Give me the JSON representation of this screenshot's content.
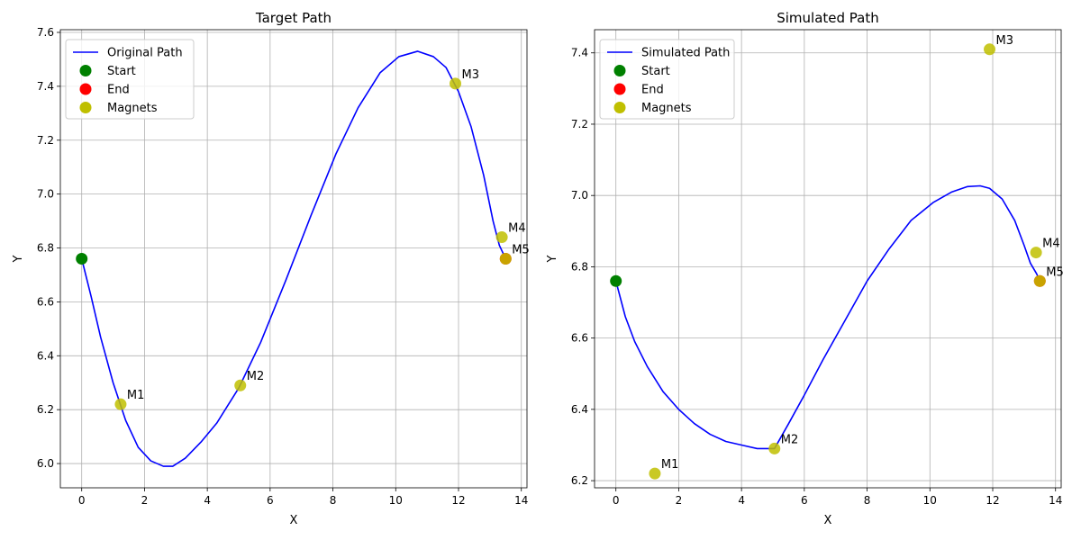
{
  "chart_data": [
    {
      "type": "line",
      "title": "Target Path",
      "xlabel": "X",
      "ylabel": "Y",
      "xlim": [
        -0.68,
        14.18
      ],
      "ylim": [
        5.91,
        7.61
      ],
      "xticks": [
        0,
        2,
        4,
        6,
        8,
        10,
        12,
        14
      ],
      "yticks": [
        6.0,
        6.2,
        6.4,
        6.6,
        6.8,
        7.0,
        7.2,
        7.4,
        7.6
      ],
      "ytick_labels": [
        "6.0",
        "6.2",
        "6.4",
        "6.6",
        "6.8",
        "7.0",
        "7.2",
        "7.4",
        "7.6"
      ],
      "grid": true,
      "legend_position": "top-left",
      "path": {
        "name": "Original Path",
        "color": "#0000ff",
        "x": [
          0,
          0.3,
          0.6,
          1.0,
          1.4,
          1.8,
          2.2,
          2.6,
          2.9,
          3.3,
          3.8,
          4.3,
          5.0,
          5.7,
          6.5,
          7.3,
          8.1,
          8.8,
          9.5,
          10.1,
          10.7,
          11.2,
          11.6,
          12.0,
          12.4,
          12.8,
          13.1,
          13.3,
          13.5
        ],
        "y": [
          6.76,
          6.62,
          6.47,
          6.3,
          6.16,
          6.06,
          6.01,
          5.99,
          5.99,
          6.02,
          6.08,
          6.15,
          6.28,
          6.45,
          6.68,
          6.92,
          7.15,
          7.32,
          7.45,
          7.51,
          7.53,
          7.51,
          7.47,
          7.38,
          7.25,
          7.07,
          6.9,
          6.81,
          6.76
        ]
      },
      "start": {
        "name": "Start",
        "x": 0,
        "y": 6.76,
        "color": "#008000"
      },
      "end": {
        "name": "End",
        "x": 13.5,
        "y": 6.76,
        "color": "#ff0000"
      },
      "magnets": {
        "name": "Magnets",
        "color": "#bfbf00",
        "points": [
          {
            "label": "M1",
            "x": 1.24,
            "y": 6.22
          },
          {
            "label": "M2",
            "x": 5.05,
            "y": 6.29
          },
          {
            "label": "M3",
            "x": 11.9,
            "y": 7.41
          },
          {
            "label": "M4",
            "x": 13.38,
            "y": 6.84
          },
          {
            "label": "M5",
            "x": 13.5,
            "y": 6.76
          }
        ]
      }
    },
    {
      "type": "line",
      "title": "Simulated Path",
      "xlabel": "X",
      "ylabel": "Y",
      "xlim": [
        -0.68,
        14.18
      ],
      "ylim": [
        6.18,
        7.465
      ],
      "xticks": [
        0,
        2,
        4,
        6,
        8,
        10,
        12,
        14
      ],
      "yticks": [
        6.2,
        6.4,
        6.6,
        6.8,
        7.0,
        7.2,
        7.4
      ],
      "ytick_labels": [
        "6.2",
        "6.4",
        "6.6",
        "6.8",
        "7.0",
        "7.2",
        "7.4"
      ],
      "grid": true,
      "legend_position": "top-left",
      "path": {
        "name": "Simulated Path",
        "color": "#0000ff",
        "x": [
          0,
          0.3,
          0.6,
          1.0,
          1.5,
          2.0,
          2.5,
          3.0,
          3.5,
          4.0,
          4.5,
          5.05,
          5.5,
          6.0,
          6.6,
          7.3,
          8.0,
          8.7,
          9.4,
          10.1,
          10.7,
          11.2,
          11.6,
          11.9,
          12.3,
          12.7,
          13.0,
          13.2,
          13.4,
          13.5
        ],
        "y": [
          6.76,
          6.66,
          6.59,
          6.52,
          6.45,
          6.4,
          6.36,
          6.33,
          6.31,
          6.3,
          6.29,
          6.29,
          6.36,
          6.44,
          6.54,
          6.65,
          6.76,
          6.85,
          6.93,
          6.98,
          7.01,
          7.025,
          7.027,
          7.02,
          6.99,
          6.93,
          6.86,
          6.81,
          6.78,
          6.76
        ]
      },
      "start": {
        "name": "Start",
        "x": 0,
        "y": 6.76,
        "color": "#008000"
      },
      "end": {
        "name": "End",
        "x": 13.5,
        "y": 6.76,
        "color": "#ff0000"
      },
      "magnets": {
        "name": "Magnets",
        "color": "#bfbf00",
        "points": [
          {
            "label": "M1",
            "x": 1.24,
            "y": 6.22
          },
          {
            "label": "M2",
            "x": 5.05,
            "y": 6.29
          },
          {
            "label": "M3",
            "x": 11.9,
            "y": 7.41
          },
          {
            "label": "M4",
            "x": 13.38,
            "y": 6.84
          },
          {
            "label": "M5",
            "x": 13.5,
            "y": 6.76
          }
        ]
      }
    }
  ]
}
